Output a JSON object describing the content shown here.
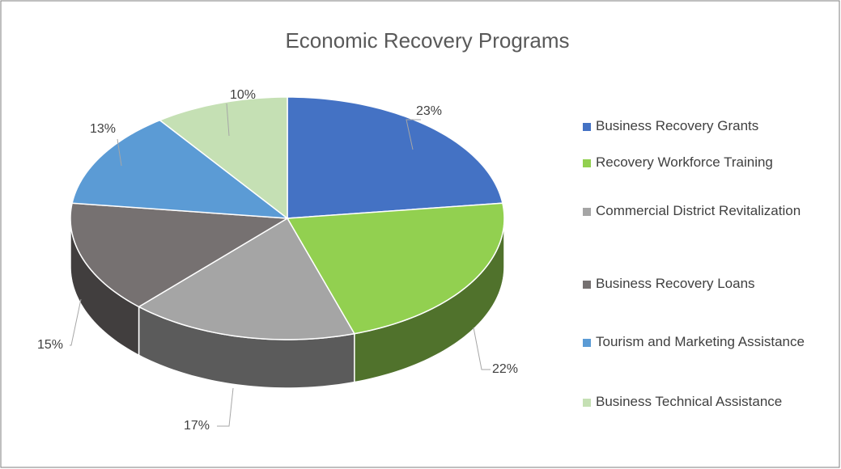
{
  "chart_data": {
    "type": "pie3d",
    "title": "Economic Recovery Programs",
    "categories": [
      "Business Recovery Grants",
      "Recovery Workforce Training",
      "Commercial District Revitalization",
      "Business Recovery Loans",
      "Tourism and Marketing Assistance",
      "Business Technical Assistance"
    ],
    "values": [
      23,
      22,
      17,
      15,
      13,
      10
    ],
    "value_labels": [
      "23%",
      "22%",
      "17%",
      "15%",
      "13%",
      "10%"
    ],
    "colors": [
      "#4472c4",
      "#92d050",
      "#a5a5a5",
      "#767171",
      "#5b9bd5",
      "#c5e0b4"
    ],
    "legend": "right"
  }
}
